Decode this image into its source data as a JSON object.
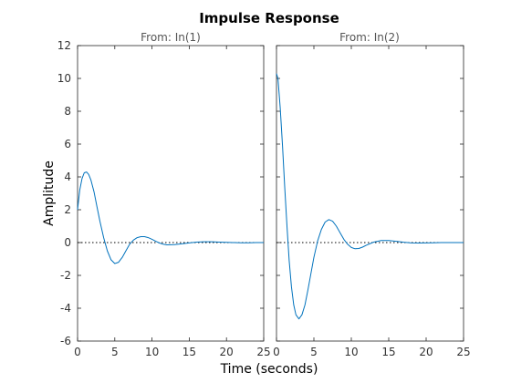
{
  "chart_data": {
    "type": "line",
    "title": "Impulse Response",
    "xlabel": "Time (seconds)",
    "ylabel": "Amplitude",
    "xlim": [
      0,
      25
    ],
    "ylim": [
      -6,
      12
    ],
    "x_ticks": [
      "0",
      "5",
      "10",
      "15",
      "20",
      "25"
    ],
    "y_ticks": [
      "-6",
      "-4",
      "-2",
      "0",
      "2",
      "4",
      "6",
      "8",
      "10",
      "12"
    ],
    "grid": false,
    "reference_line": 0,
    "line_color": "#0072bd",
    "panels": [
      {
        "subtitle": "From: In(1)",
        "x": [
          0,
          0.3,
          0.6,
          0.9,
          1.2,
          1.5,
          1.8,
          2.2,
          2.6,
          3,
          3.5,
          4,
          4.5,
          5,
          5.5,
          6,
          6.5,
          7,
          7.5,
          8,
          8.5,
          9,
          9.5,
          10,
          10.5,
          11,
          11.5,
          12,
          13,
          14,
          15,
          16,
          17,
          18,
          19,
          20,
          21,
          22,
          23,
          24,
          25
        ],
        "y": [
          2.0,
          3.2,
          3.9,
          4.25,
          4.3,
          4.15,
          3.8,
          3.1,
          2.2,
          1.3,
          0.3,
          -0.5,
          -1.05,
          -1.28,
          -1.2,
          -0.9,
          -0.5,
          -0.1,
          0.15,
          0.3,
          0.36,
          0.36,
          0.3,
          0.2,
          0.08,
          -0.03,
          -0.1,
          -0.14,
          -0.13,
          -0.08,
          -0.02,
          0.03,
          0.05,
          0.05,
          0.03,
          0.01,
          0.0,
          -0.01,
          -0.01,
          0.0,
          0.0
        ]
      },
      {
        "subtitle": "From: In(2)",
        "x": [
          0,
          0.2,
          0.5,
          0.8,
          1.1,
          1.4,
          1.7,
          2.0,
          2.3,
          2.6,
          3.0,
          3.4,
          3.8,
          4.2,
          4.6,
          5.0,
          5.5,
          6,
          6.5,
          7,
          7.5,
          8,
          8.5,
          9,
          9.5,
          10,
          10.5,
          11,
          11.5,
          12,
          13,
          14,
          15,
          16,
          17,
          18,
          19,
          20,
          21,
          22,
          23,
          24,
          25
        ],
        "y": [
          10.3,
          10.0,
          8.2,
          5.9,
          3.4,
          1.0,
          -1.1,
          -2.7,
          -3.8,
          -4.4,
          -4.65,
          -4.4,
          -3.8,
          -2.9,
          -1.9,
          -0.9,
          0.1,
          0.8,
          1.25,
          1.4,
          1.3,
          1.0,
          0.6,
          0.2,
          -0.1,
          -0.3,
          -0.38,
          -0.36,
          -0.28,
          -0.16,
          0.03,
          0.12,
          0.13,
          0.08,
          0.02,
          -0.02,
          -0.03,
          -0.02,
          -0.01,
          0.0,
          0.0,
          0.0,
          0.0
        ]
      }
    ]
  }
}
